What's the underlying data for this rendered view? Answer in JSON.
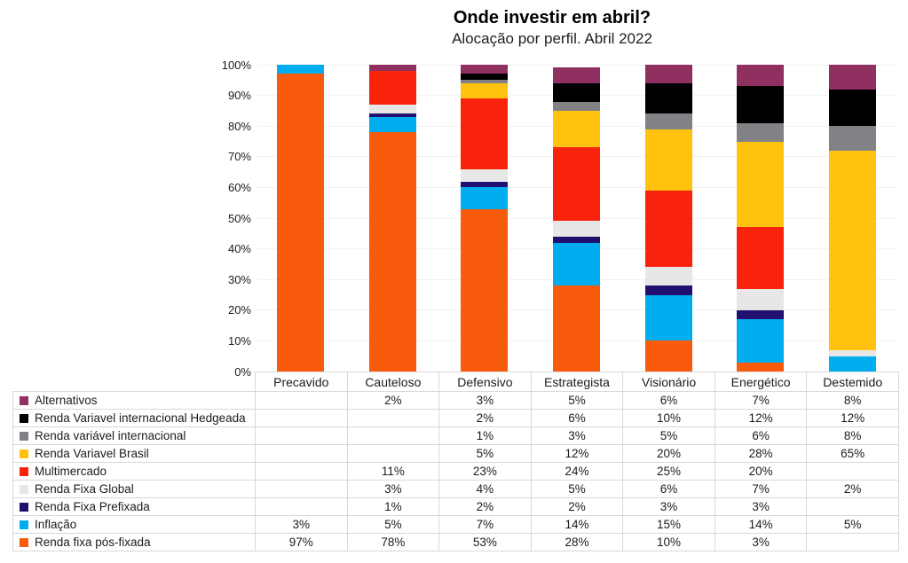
{
  "chart_data": {
    "type": "bar",
    "stacked": true,
    "title": "Onde investir em abril?",
    "subtitle": "Alocação por perfil. Abril 2022",
    "categories": [
      "Precavido",
      "Cauteloso",
      "Defensivo",
      "Estrategista",
      "Visionário",
      "Energético",
      "Destemido"
    ],
    "series": [
      {
        "name": "Alternativos",
        "color": "#8F3061",
        "values": [
          null,
          2,
          3,
          5,
          6,
          7,
          8
        ]
      },
      {
        "name": "Renda Variavel internacional Hedgeada",
        "color": "#000000",
        "values": [
          null,
          null,
          2,
          6,
          10,
          12,
          12
        ]
      },
      {
        "name": "Renda variável internacional",
        "color": "#828286",
        "values": [
          null,
          null,
          1,
          3,
          5,
          6,
          8
        ]
      },
      {
        "name": "Renda Variavel Brasil",
        "color": "#FFC20E",
        "values": [
          null,
          null,
          5,
          12,
          20,
          28,
          65
        ]
      },
      {
        "name": "Multimercado",
        "color": "#F9230C",
        "values": [
          null,
          11,
          23,
          24,
          25,
          20,
          null
        ]
      },
      {
        "name": "Renda Fixa Global",
        "color": "#E7E7E7",
        "values": [
          null,
          3,
          4,
          5,
          6,
          7,
          2
        ]
      },
      {
        "name": "Renda Fixa Prefixada",
        "color": "#221070",
        "values": [
          null,
          1,
          2,
          2,
          3,
          3,
          null
        ]
      },
      {
        "name": "Inflação",
        "color": "#00AEEF",
        "values": [
          3,
          5,
          7,
          14,
          15,
          14,
          5
        ]
      },
      {
        "name": "Renda fixa pós-fixada",
        "color": "#F95B0D",
        "values": [
          97,
          78,
          53,
          28,
          10,
          3,
          null
        ]
      }
    ],
    "ylim": [
      0,
      100
    ],
    "ytick_step": 10,
    "ytick_labels": [
      "0%",
      "10%",
      "20%",
      "30%",
      "40%",
      "50%",
      "60%",
      "70%",
      "80%",
      "90%",
      "100%"
    ],
    "value_suffix": "%",
    "grid": "horizontal",
    "legend_position": "table-left-column"
  }
}
